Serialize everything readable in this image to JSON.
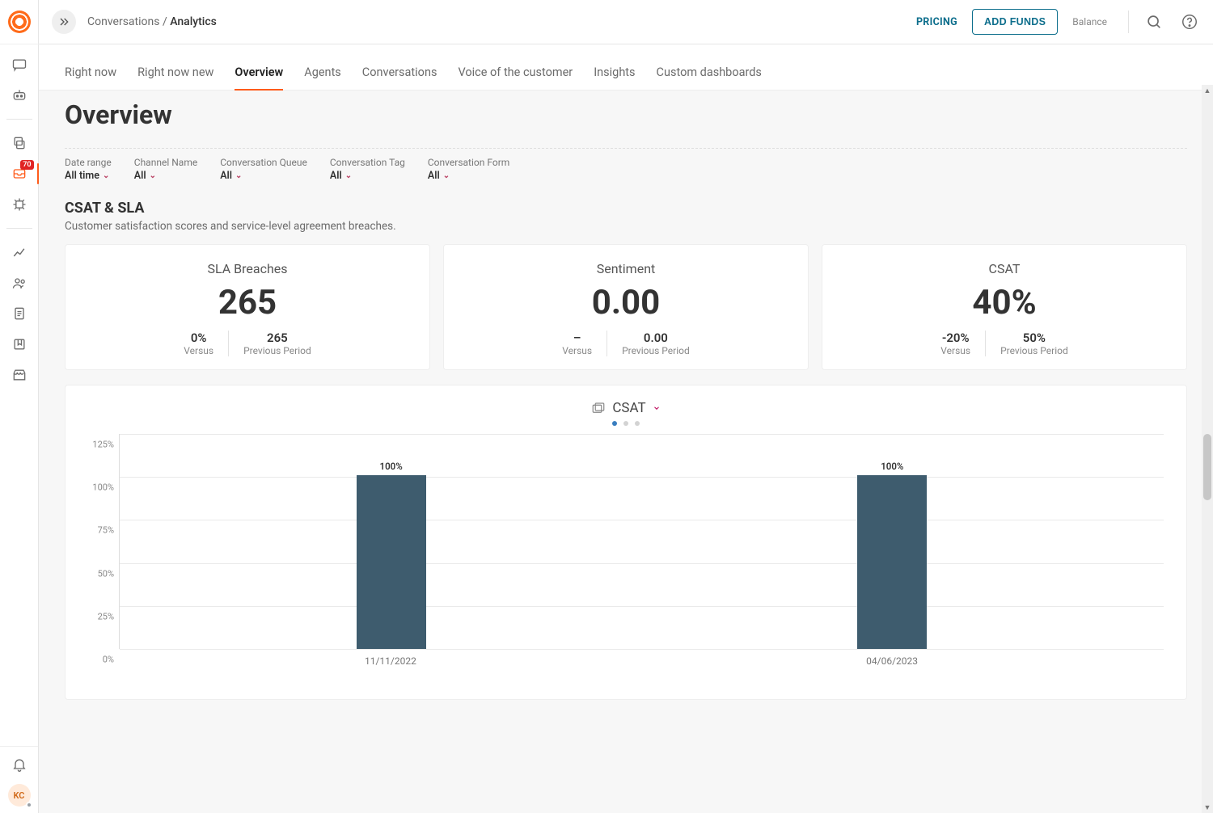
{
  "header": {
    "breadcrumb_parent": "Conversations",
    "breadcrumb_sep": " / ",
    "breadcrumb_current": "Analytics",
    "pricing": "PRICING",
    "add_funds": "ADD FUNDS",
    "balance_label": "Balance"
  },
  "sidebar": {
    "badge_count": "70",
    "avatar_initials": "KC"
  },
  "tabs": [
    {
      "label": "Right now",
      "active": false
    },
    {
      "label": "Right now new",
      "active": false
    },
    {
      "label": "Overview",
      "active": true
    },
    {
      "label": "Agents",
      "active": false
    },
    {
      "label": "Conversations",
      "active": false
    },
    {
      "label": "Voice of the customer",
      "active": false
    },
    {
      "label": "Insights",
      "active": false
    },
    {
      "label": "Custom dashboards",
      "active": false
    }
  ],
  "page_title": "Overview",
  "filters": [
    {
      "label": "Date range",
      "value": "All time"
    },
    {
      "label": "Channel Name",
      "value": "All"
    },
    {
      "label": "Conversation Queue",
      "value": "All"
    },
    {
      "label": "Conversation Tag",
      "value": "All"
    },
    {
      "label": "Conversation Form",
      "value": "All"
    }
  ],
  "section": {
    "title": "CSAT & SLA",
    "subtitle": "Customer satisfaction scores and service-level agreement breaches."
  },
  "metrics": [
    {
      "title": "SLA Breaches",
      "value": "265",
      "versus": "0%",
      "versus_label": "Versus",
      "prev": "265",
      "prev_label": "Previous Period"
    },
    {
      "title": "Sentiment",
      "value": "0.00",
      "versus": "–",
      "versus_label": "Versus",
      "prev": "0.00",
      "prev_label": "Previous Period"
    },
    {
      "title": "CSAT",
      "value": "40%",
      "versus": "-20%",
      "versus_label": "Versus",
      "prev": "50%",
      "prev_label": "Previous Period"
    }
  ],
  "chart": {
    "name": "CSAT",
    "type": "bar",
    "y_ticks": [
      "0%",
      "25%",
      "50%",
      "75%",
      "100%",
      "125%"
    ],
    "y_max": 125,
    "bar_color": "#3e5c6e",
    "grid_color": "#eaeaea",
    "bars": [
      {
        "label": "11/11/2022",
        "value": 100,
        "value_label": "100%",
        "x_pct": 26
      },
      {
        "label": "04/06/2023",
        "value": 100,
        "value_label": "100%",
        "x_pct": 74
      }
    ],
    "active_page_index": 0,
    "page_count": 3
  },
  "scrollbar": {
    "thumb_top_pct": 48,
    "thumb_height_pct": 9
  }
}
